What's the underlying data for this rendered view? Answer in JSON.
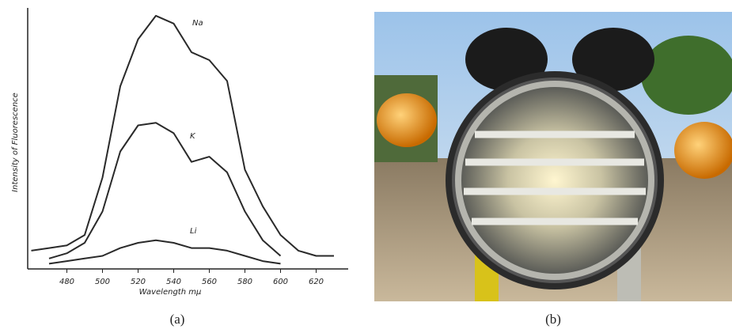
{
  "chart_data": {
    "type": "line",
    "y_label": "Intensity of Fluorescence",
    "x_label": "Wavelength mμ",
    "x": [
      460,
      470,
      480,
      490,
      500,
      510,
      520,
      530,
      540,
      550,
      560,
      570,
      580,
      590,
      600,
      610,
      620,
      630
    ],
    "series": [
      {
        "name": "Na",
        "color": "#2a2a2a",
        "values": [
          7,
          8,
          9,
          13,
          35,
          70,
          88,
          97,
          94,
          83,
          80,
          72,
          38,
          24,
          13,
          7,
          5,
          5
        ]
      },
      {
        "name": "K",
        "color": "#2a2a2a",
        "values": [
          null,
          4,
          6,
          10,
          22,
          45,
          55,
          56,
          52,
          41,
          43,
          37,
          22,
          11,
          5,
          null,
          null,
          null
        ]
      },
      {
        "name": "Li",
        "color": "#2a2a2a",
        "values": [
          null,
          2,
          3,
          4,
          5,
          8,
          10,
          11,
          10,
          8,
          8,
          7,
          5,
          3,
          2,
          null,
          null,
          null
        ]
      }
    ],
    "xlim": [
      458,
      638
    ],
    "ylim": [
      0,
      100
    ],
    "xticks": [
      480,
      500,
      520,
      540,
      560,
      580,
      600,
      620
    ]
  },
  "captions": {
    "a": "(a)",
    "b": "(b)"
  }
}
